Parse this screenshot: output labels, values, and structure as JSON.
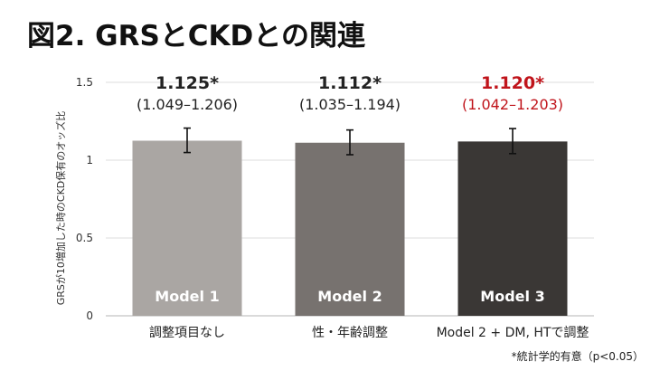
{
  "chart_data": {
    "type": "bar",
    "title": "図2. GRSとCKDとの関連",
    "ylabel": "GRSが10増加した時のCKD保有のオッズ比",
    "ylim": [
      0,
      1.5
    ],
    "yticks": [
      0,
      0.5,
      1,
      1.5
    ],
    "ytick_labels": [
      "0",
      "0.5",
      "1",
      "1.5"
    ],
    "grid": true,
    "categories": [
      "調整項目なし",
      "性・年齢調整",
      "Model 2 + DM, HTで調整"
    ],
    "bar_labels": [
      "Model 1",
      "Model 2",
      "Model 3"
    ],
    "values": [
      1.125,
      1.112,
      1.12
    ],
    "ci_low": [
      1.049,
      1.035,
      1.042
    ],
    "ci_high": [
      1.206,
      1.194,
      1.203
    ],
    "value_labels": [
      "1.125*",
      "1.112*",
      "1.120*"
    ],
    "ci_labels": [
      "(1.049–1.206)",
      "(1.035–1.194)",
      "(1.042–1.203)"
    ],
    "bar_colors": [
      "#aaa6a3",
      "#77726f",
      "#3a3735"
    ],
    "label_colors": [
      "#222222",
      "#222222",
      "#c0141b"
    ],
    "footnote": "*統計学的有意（p<0.05）"
  }
}
